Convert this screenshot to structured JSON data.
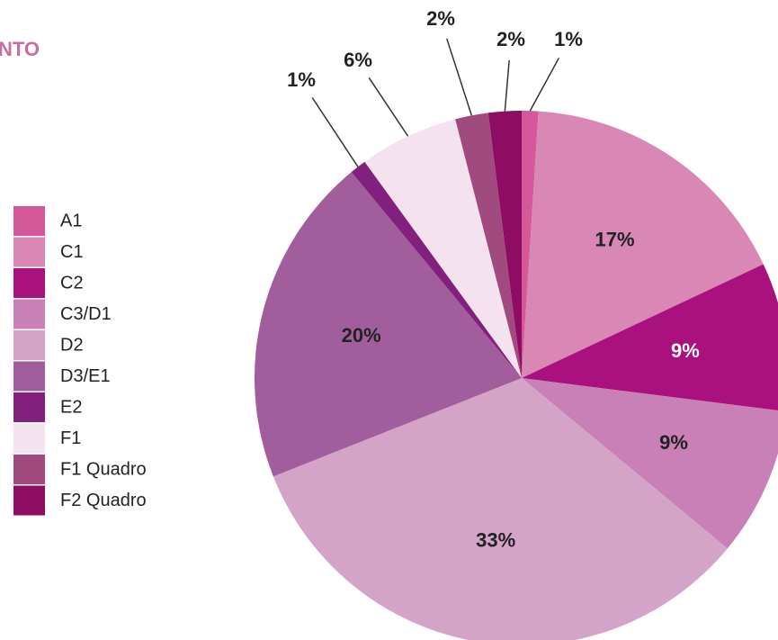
{
  "chart_data": {
    "type": "pie",
    "title": "NTO",
    "categories": [
      "A1",
      "C1",
      "C2",
      "C3/D1",
      "D2",
      "D3/E1",
      "E2",
      "F1",
      "F1 Quadro",
      "F2 Quadro"
    ],
    "values": [
      1,
      17,
      9,
      9,
      33,
      20,
      1,
      6,
      2,
      2
    ],
    "value_labels": [
      "1%",
      "17%",
      "9%",
      "9%",
      "33%",
      "20%",
      "1%",
      "6%",
      "2%",
      "2%"
    ],
    "colors": [
      "#d4589a",
      "#d987b5",
      "#a8117e",
      "#c880b6",
      "#d4a4c8",
      "#a25e9c",
      "#82207e",
      "#f5e2ef",
      "#a04a80",
      "#8e0c62"
    ],
    "legend": "left"
  }
}
